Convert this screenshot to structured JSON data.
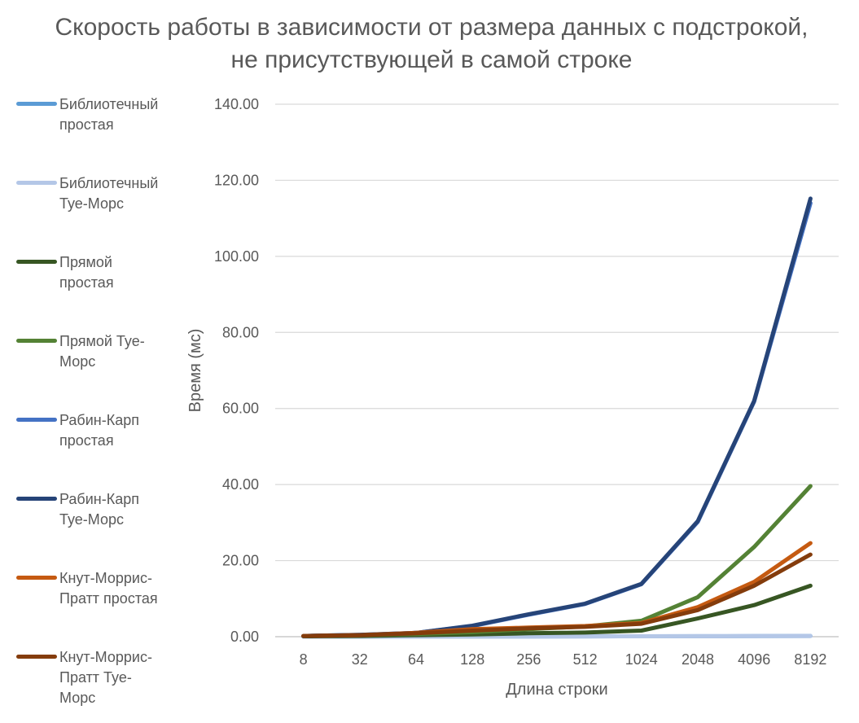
{
  "chart_data": {
    "type": "line",
    "title": "Скорость работы в зависимости от размера данных с подстрокой, не присутствующей в самой строке",
    "xlabel": "Длина строки",
    "ylabel": "Время (мс)",
    "categories": [
      "8",
      "32",
      "64",
      "128",
      "256",
      "512",
      "1024",
      "2048",
      "4096",
      "8192"
    ],
    "ylim": [
      0,
      140
    ],
    "yticks": [
      "0.00",
      "20.00",
      "40.00",
      "60.00",
      "80.00",
      "100.00",
      "120.00",
      "140.00"
    ],
    "grid": true,
    "legend_position": "left",
    "series": [
      {
        "name": "Библиотечный простая",
        "color": "#5b9bd5",
        "values": [
          0.02,
          0.03,
          0.04,
          0.05,
          0.06,
          0.08,
          0.1,
          0.12,
          0.15,
          0.2
        ]
      },
      {
        "name": "Библиотечный Туе-Морс",
        "color": "#b4c7e7",
        "values": [
          0.02,
          0.03,
          0.04,
          0.05,
          0.06,
          0.08,
          0.1,
          0.12,
          0.15,
          0.2
        ]
      },
      {
        "name": "Прямой простая",
        "color": "#375623",
        "values": [
          0.1,
          0.2,
          0.4,
          0.6,
          0.9,
          1.1,
          1.6,
          4.8,
          8.3,
          13.4
        ]
      },
      {
        "name": "Прямой Туе-Морс",
        "color": "#548235",
        "values": [
          0.2,
          0.4,
          0.7,
          1.2,
          2.0,
          2.7,
          4.2,
          10.4,
          23.6,
          39.6
        ]
      },
      {
        "name": "Рабин-Карп простая",
        "color": "#4472c4",
        "values": [
          0.2,
          0.5,
          1.0,
          2.8,
          5.8,
          8.6,
          13.8,
          30.2,
          61.8,
          114.0
        ]
      },
      {
        "name": "Рабин-Карп Туе-Морс",
        "color": "#264478",
        "values": [
          0.2,
          0.5,
          1.0,
          2.9,
          5.9,
          8.7,
          13.9,
          30.4,
          62.0,
          115.2
        ]
      },
      {
        "name": "Кнут-Моррис-Пратт простая",
        "color": "#c55a11",
        "values": [
          0.2,
          0.4,
          1.0,
          2.0,
          2.4,
          2.8,
          3.6,
          7.8,
          14.4,
          24.6
        ]
      },
      {
        "name": "Кнут-Моррис-Пратт Туе-Морс",
        "color": "#843c0c",
        "values": [
          0.2,
          0.4,
          0.9,
          1.6,
          2.2,
          2.6,
          3.4,
          7.0,
          13.4,
          21.6
        ]
      }
    ],
    "legend_labels": [
      [
        "Библиотечный",
        "простая"
      ],
      [
        "Библиотечный",
        "Туе-Морс"
      ],
      [
        "Прямой",
        "простая"
      ],
      [
        "Прямой Туе-",
        "Морс"
      ],
      [
        "Рабин-Карп",
        "простая"
      ],
      [
        "Рабин-Карп",
        "Туе-Морс"
      ],
      [
        "Кнут-Моррис-",
        "Пратт простая"
      ],
      [
        "Кнут-Моррис-",
        "Пратт Туе-",
        "Морс"
      ]
    ]
  }
}
